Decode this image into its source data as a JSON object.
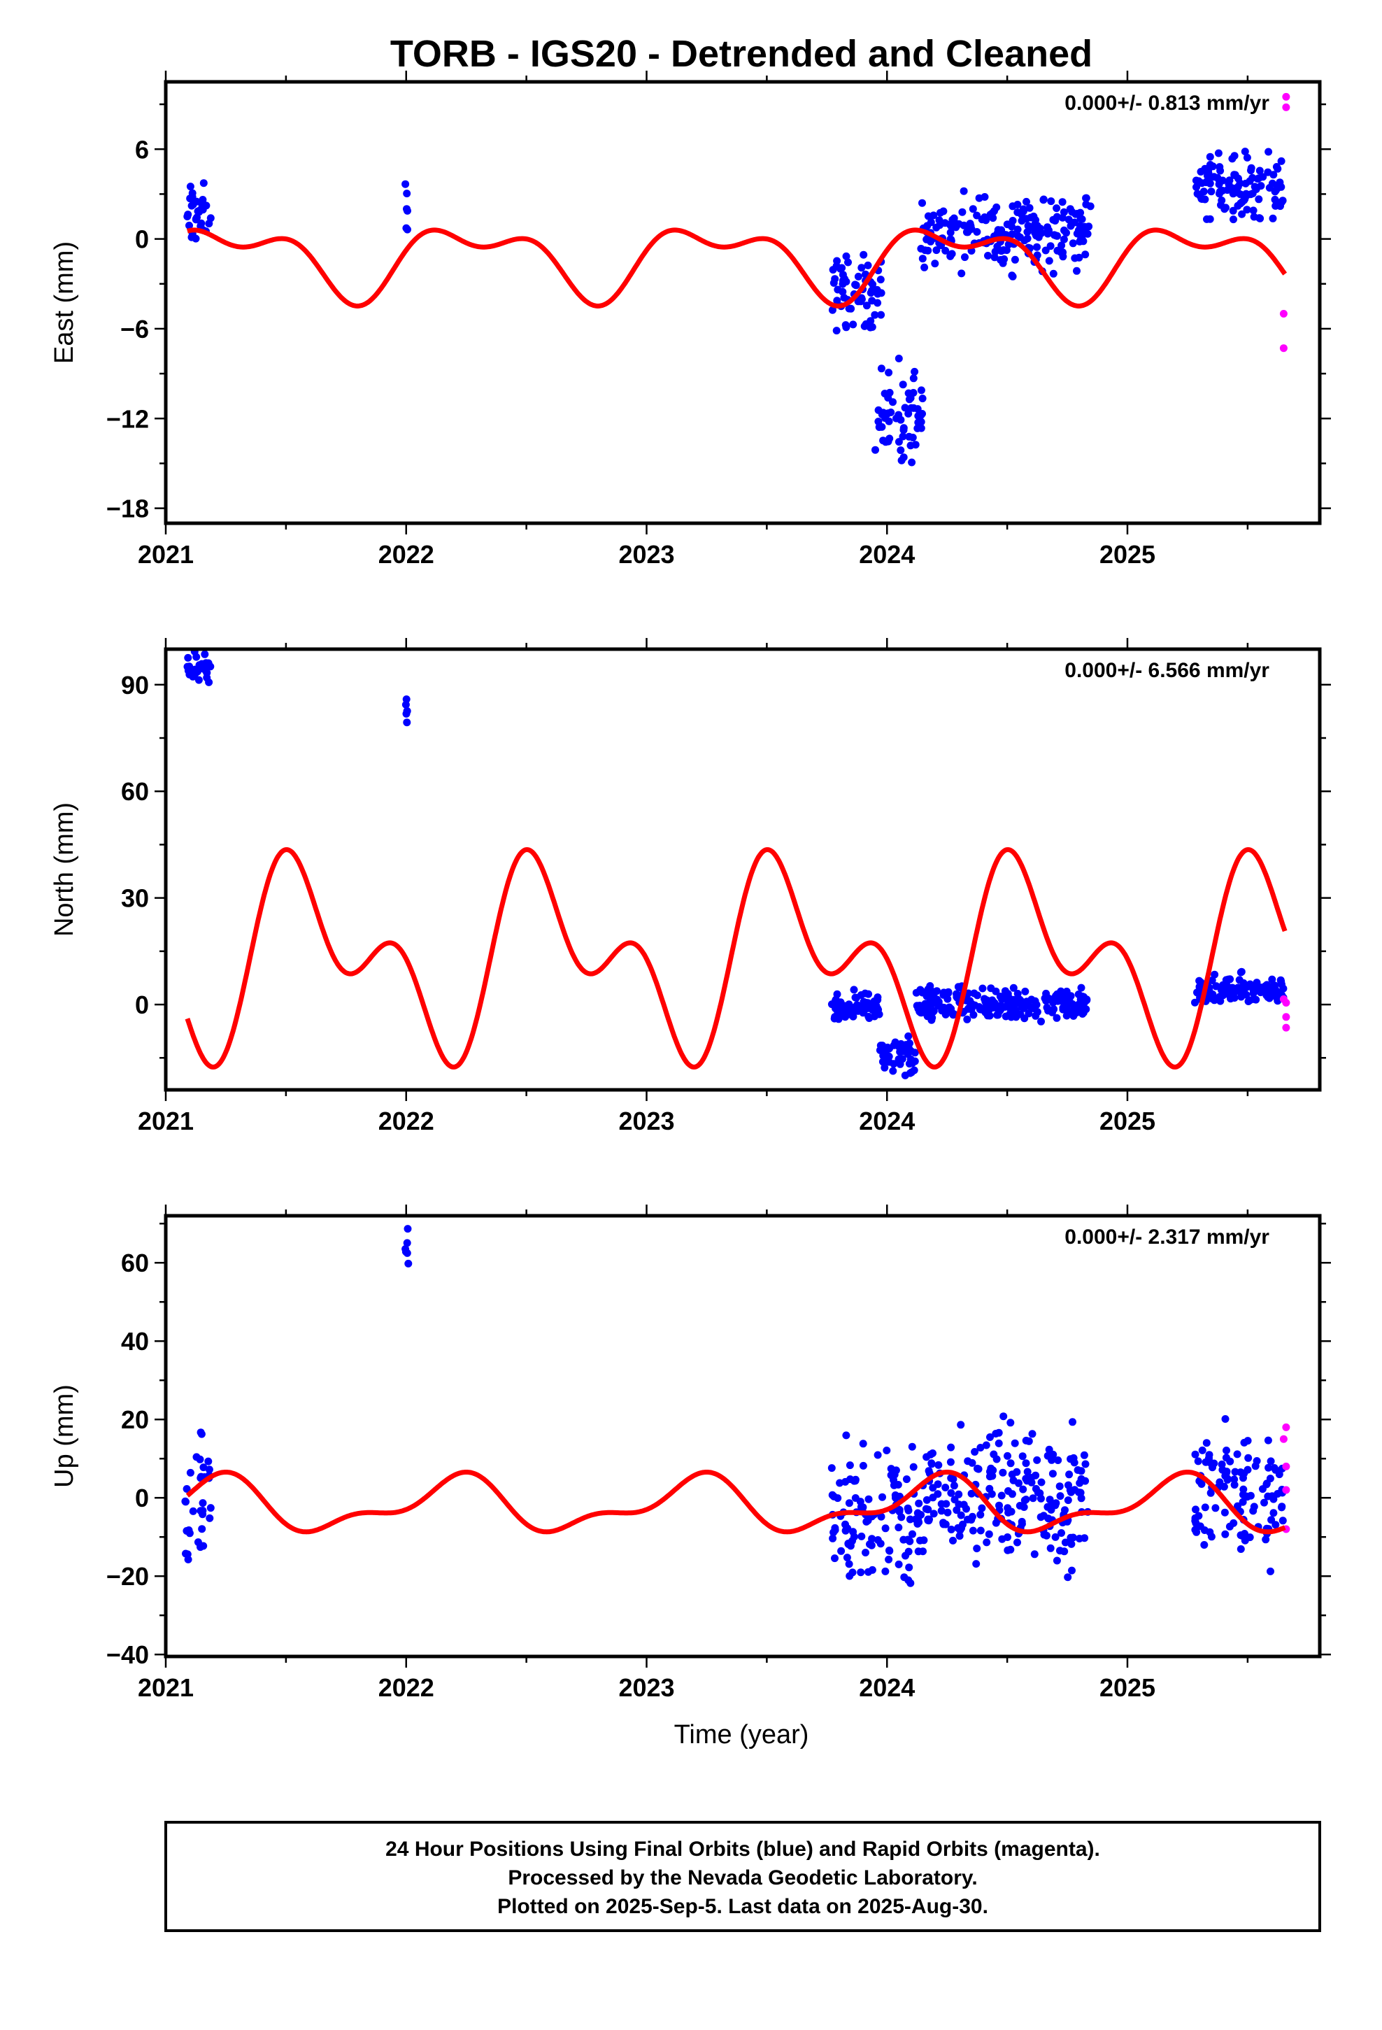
{
  "title": "TORB - IGS20 - Detrended and Cleaned",
  "xlabel": "Time (year)",
  "footer": {
    "line1": "24 Hour Positions Using Final Orbits (blue) and Rapid Orbits (magenta).",
    "line2": "Processed by the Nevada Geodetic Laboratory.",
    "line3": "Plotted on 2025-Sep-5. Last data on 2025-Aug-30."
  },
  "colors": {
    "final": "#0000ff",
    "rapid": "#ff00ff",
    "model": "#ff0000",
    "frame": "#000000"
  },
  "chart_data": [
    {
      "type": "scatter",
      "ylabel": "East (mm)",
      "rate": "0.000+/- 0.813 mm/yr",
      "xlim": [
        2021.0,
        2025.8
      ],
      "ylim": [
        -19,
        10.5
      ],
      "xticks": [
        2021,
        2022,
        2023,
        2024,
        2025
      ],
      "yticks": [
        -18,
        -12,
        -6,
        0,
        6
      ],
      "ytick_labels": [
        "−18",
        "−12",
        "−6",
        "0",
        "6"
      ],
      "grid": false,
      "model": {
        "c": -1.3,
        "a1": 2.0,
        "p1": -0.03,
        "a2": 1.2,
        "p2": 0.07
      },
      "series": [
        {
          "name": "Final Orbits",
          "color": "#0000ff",
          "segments": [
            {
              "x0": 2021.08,
              "x1": 2021.19,
              "center": 1.5,
              "spread": 3.0
            },
            {
              "x0": 2021.995,
              "x1": 2022.01,
              "center": 2.0,
              "spread": 3.5
            },
            {
              "x0": 2023.77,
              "x1": 2023.98,
              "center": -3.5,
              "spread": 3.5
            },
            {
              "x0": 2023.95,
              "x1": 2024.15,
              "center": -12.0,
              "spread": 5.0
            },
            {
              "x0": 2024.14,
              "x1": 2024.85,
              "center": 0.5,
              "spread": 3.5
            },
            {
              "x0": 2025.28,
              "x1": 2025.65,
              "center": 3.5,
              "spread": 3.0
            }
          ]
        },
        {
          "name": "Rapid Orbits",
          "color": "#ff00ff",
          "points": [
            [
              2025.66,
              9.5
            ],
            [
              2025.66,
              8.8
            ],
            [
              2025.65,
              -5.0
            ],
            [
              2025.65,
              -7.3
            ]
          ]
        }
      ]
    },
    {
      "type": "scatter",
      "ylabel": "North (mm)",
      "rate": "0.000+/- 6.566 mm/yr",
      "xlim": [
        2021.0,
        2025.8
      ],
      "ylim": [
        -24,
        100
      ],
      "xticks": [
        2021,
        2022,
        2023,
        2024,
        2025
      ],
      "yticks": [
        0,
        30,
        60,
        90
      ],
      "ytick_labels": [
        "0",
        "30",
        "60",
        "90"
      ],
      "grid": false,
      "model": {
        "c": 13.0,
        "a1": 19.0,
        "p1": -0.35,
        "a2": 16.0,
        "p2": 0.15
      },
      "series": [
        {
          "name": "Final Orbits",
          "color": "#0000ff",
          "segments": [
            {
              "x0": 2021.08,
              "x1": 2021.19,
              "center": 95.0,
              "spread": 6.0
            },
            {
              "x0": 2021.995,
              "x1": 2022.01,
              "center": 83.0,
              "spread": 5.0
            },
            {
              "x0": 2023.77,
              "x1": 2023.97,
              "center": -1.0,
              "spread": 6.0
            },
            {
              "x0": 2023.97,
              "x1": 2024.12,
              "center": -15.0,
              "spread": 8.0
            },
            {
              "x0": 2024.12,
              "x1": 2024.85,
              "center": 0.0,
              "spread": 7.0
            },
            {
              "x0": 2025.28,
              "x1": 2025.65,
              "center": 4.0,
              "spread": 6.0
            }
          ]
        },
        {
          "name": "Rapid Orbits",
          "color": "#ff00ff",
          "points": [
            [
              2025.66,
              0.5
            ],
            [
              2025.66,
              -3.5
            ],
            [
              2025.66,
              -6.5
            ],
            [
              2025.65,
              1.5
            ]
          ]
        }
      ]
    },
    {
      "type": "scatter",
      "ylabel": "Up (mm)",
      "rate": "0.000+/- 2.317 mm/yr",
      "xlim": [
        2021.0,
        2025.8
      ],
      "ylim": [
        -40.5,
        72
      ],
      "xticks": [
        2021,
        2022,
        2023,
        2024,
        2025
      ],
      "yticks": [
        -40,
        -20,
        0,
        20,
        40,
        60
      ],
      "ytick_labels": [
        "−40",
        "−20",
        "0",
        "20",
        "40",
        "60"
      ],
      "grid": false,
      "model": {
        "c": -2.0,
        "a1": 6.0,
        "p1": 0.05,
        "a2": 3.0,
        "p2": -0.15
      },
      "series": [
        {
          "name": "Final Orbits",
          "color": "#0000ff",
          "segments": [
            {
              "x0": 2021.08,
              "x1": 2021.19,
              "center": 0.0,
              "spread": 22.0
            },
            {
              "x0": 2021.995,
              "x1": 2022.01,
              "center": 64.0,
              "spread": 8.0
            },
            {
              "x0": 2023.77,
              "x1": 2024.15,
              "center": -4.0,
              "spread": 28.0
            },
            {
              "x0": 2024.15,
              "x1": 2024.85,
              "center": 0.0,
              "spread": 26.0
            },
            {
              "x0": 2025.28,
              "x1": 2025.65,
              "center": 2.0,
              "spread": 24.0
            }
          ]
        },
        {
          "name": "Rapid Orbits",
          "color": "#ff00ff",
          "points": [
            [
              2025.66,
              18.0
            ],
            [
              2025.66,
              8.0
            ],
            [
              2025.66,
              2.0
            ],
            [
              2025.66,
              -8.0
            ],
            [
              2025.65,
              15.0
            ]
          ]
        }
      ]
    }
  ]
}
